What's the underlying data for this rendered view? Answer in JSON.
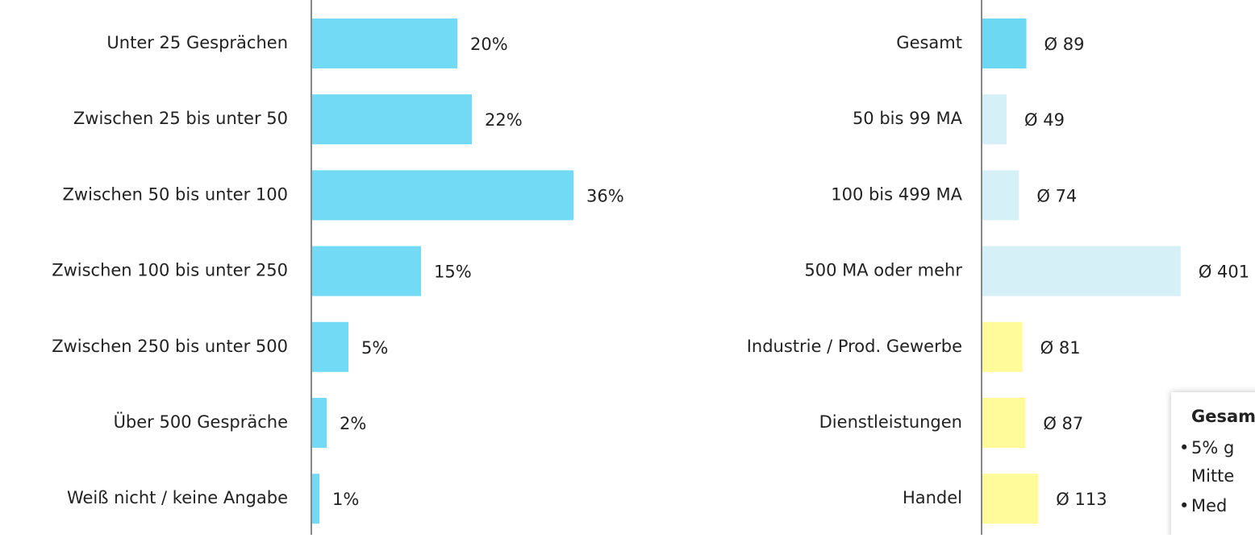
{
  "chart_data": [
    {
      "type": "bar",
      "orientation": "horizontal",
      "categories": [
        "Unter 25 Gesprächen",
        "Zwischen 25 bis unter 50",
        "Zwischen 50 bis unter 100",
        "Zwischen 100 bis unter 250",
        "Zwischen 250 bis unter  500",
        "Über 500 Gespräche",
        "Weiß nicht / keine Angabe"
      ],
      "values": [
        20,
        22,
        36,
        15,
        5,
        2,
        1
      ],
      "value_labels": [
        "20%",
        "22%",
        "36%",
        "15%",
        "5%",
        "2%",
        "1%"
      ],
      "colors": [
        "#72daf5",
        "#72daf5",
        "#72daf5",
        "#72daf5",
        "#72daf5",
        "#72daf5",
        "#72daf5"
      ]
    },
    {
      "type": "bar",
      "orientation": "horizontal",
      "categories": [
        "Gesamt",
        "50 bis 99 MA",
        "100 bis 499 MA",
        "500 MA oder mehr",
        "Industrie / Prod. Gewerbe",
        "Dienstleistungen",
        "Handel"
      ],
      "values": [
        89,
        49,
        74,
        401,
        81,
        87,
        113
      ],
      "value_labels": [
        "Ø 89",
        "Ø 49",
        "Ø 74",
        "Ø 401",
        "Ø 81",
        "Ø 87",
        "Ø 113"
      ],
      "colors": [
        "#6dd8f2",
        "#d6f0f7",
        "#d6f0f7",
        "#d6f0f7",
        "#fffb9a",
        "#fffb9a",
        "#fffb9a"
      ],
      "annotation": {
        "title": "Gesam",
        "lines": [
          "5% g",
          "Mitte",
          "Med"
        ]
      }
    }
  ]
}
